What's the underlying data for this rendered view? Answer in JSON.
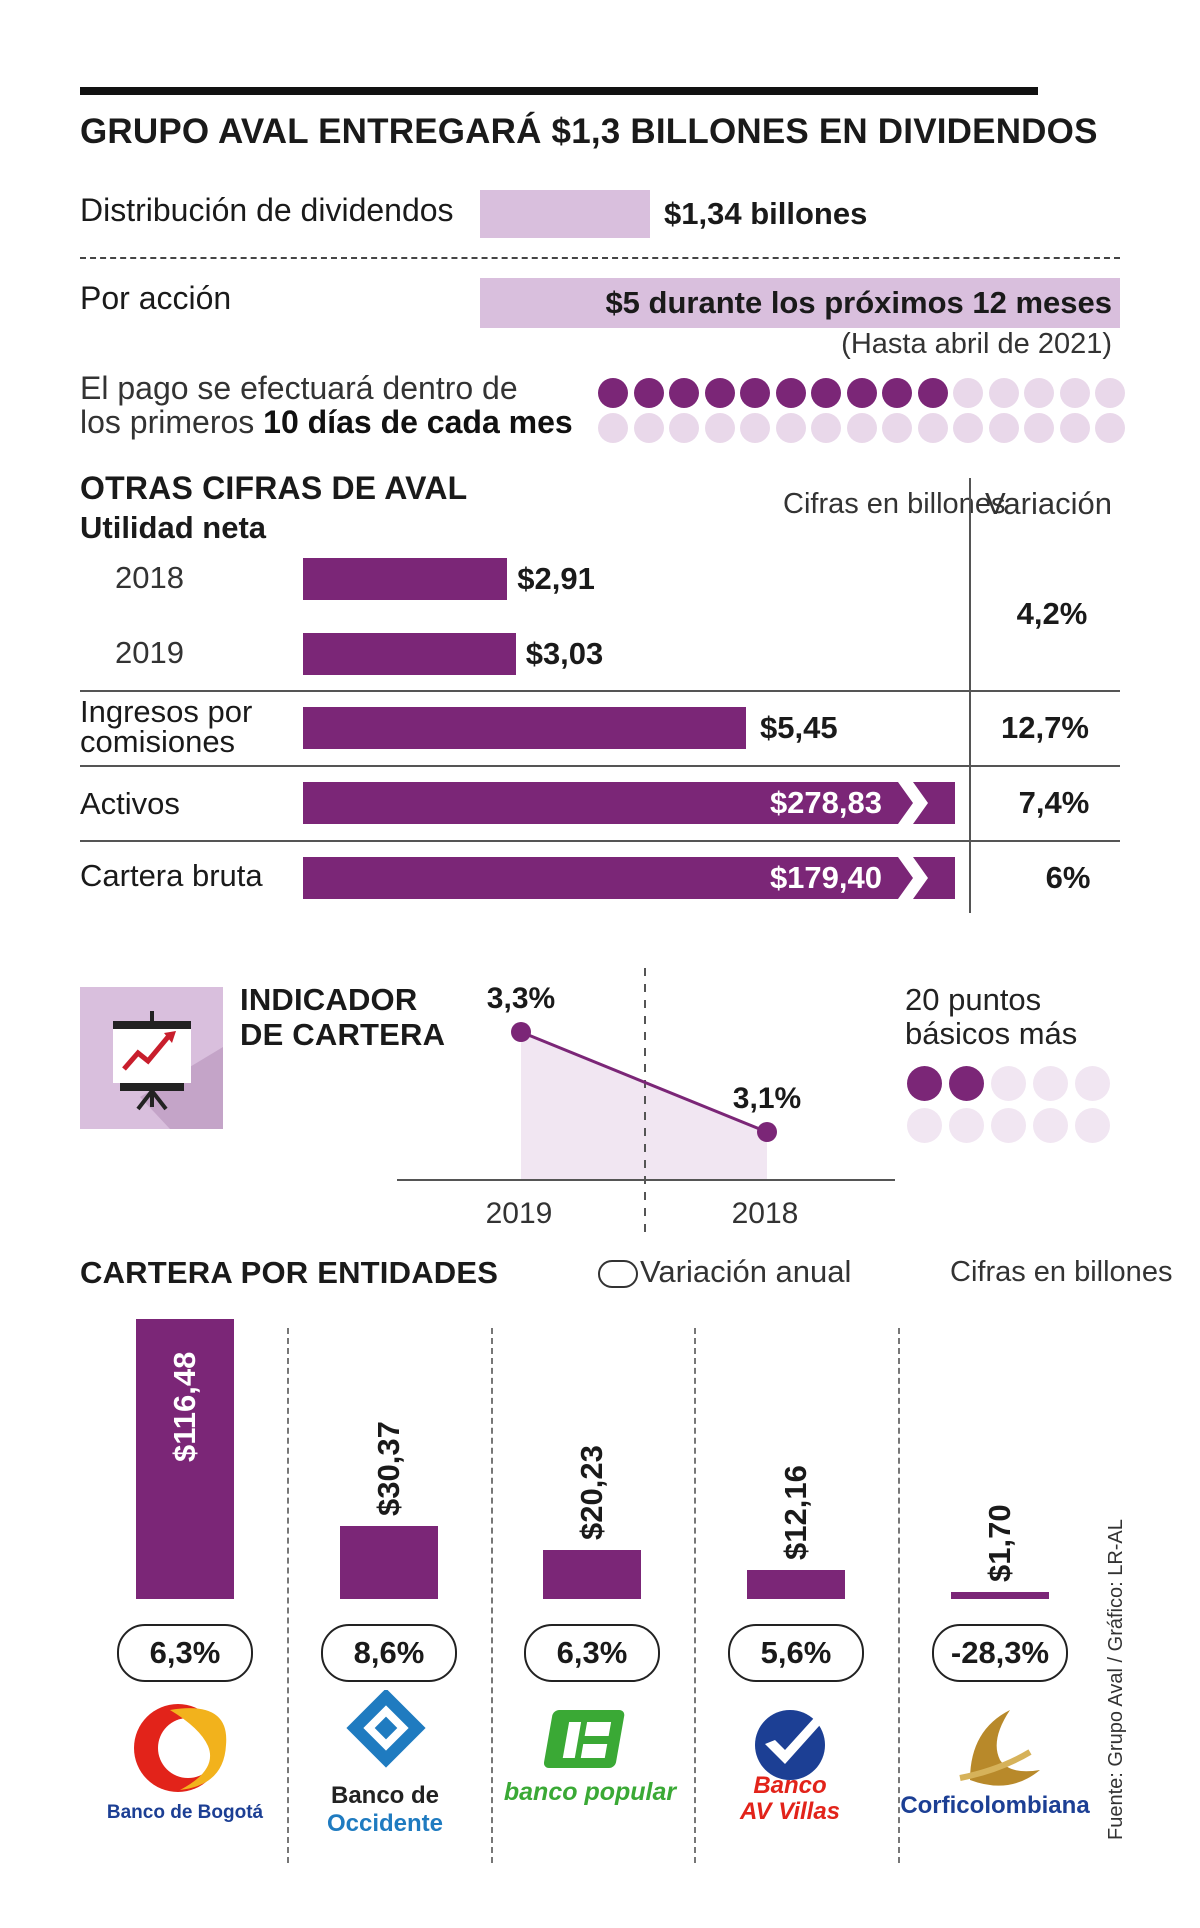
{
  "title": "GRUPO AVAL ENTREGARÁ $1,3 BILLONES EN DIVIDENDOS",
  "dividends": {
    "distribution_label": "Distribución de dividendos",
    "distribution_value": "$1,34 billones",
    "per_share_label": "Por acción",
    "per_share_value": "$5 durante los próximos 12 meses",
    "per_share_note": "(Hasta abril de 2021)",
    "payment_line1": "El pago se efectuará dentro de",
    "payment_line2_prefix": "los primeros ",
    "payment_line2_bold": "10 días de cada mes",
    "dots_total": 30,
    "dots_filled": 10
  },
  "otras": {
    "heading": "OTRAS CIFRAS DE AVAL",
    "subheading": "Utilidad neta",
    "units_note": "Cifras en billones",
    "variation_header": "Variación",
    "year_2018": "2018",
    "year_2019": "2019",
    "val_2018": "$2,91",
    "val_2019": "$3,03",
    "var_utilidad": "4,2%",
    "ingresos_line1": "Ingresos por",
    "ingresos_line2": "comisiones",
    "ingresos_value": "$5,45",
    "ingresos_var": "12,7%",
    "activos_label": "Activos",
    "activos_value": "$278,83",
    "activos_var": "7,4%",
    "cartera_label": "Cartera bruta",
    "cartera_value": "$179,40",
    "cartera_var": "6%"
  },
  "indicador": {
    "heading_line1": "INDICADOR",
    "heading_line2": "DE CARTERA",
    "points_line1": "20 puntos",
    "points_line2": "básicos más",
    "dots_total": 10,
    "dots_filled": 2
  },
  "entidades": {
    "heading": "CARTERA POR ENTIDADES",
    "variation_legend": "Variación anual",
    "units_note": "Cifras en billones",
    "source": "Fuente: Grupo Aval / Gráfico: LR-AL",
    "logos": {
      "bogota": "Banco de Bogotá",
      "occidente_line1": "Banco de",
      "occidente_line2": "Occidente",
      "popular": "banco popular",
      "avvillas_line1": "Banco",
      "avvillas_line2": "AV Villas",
      "corfi": "Corficolombiana"
    }
  },
  "colors": {
    "accent": "#7b2677",
    "light": "#d9bfdd",
    "lighter": "#e9d8ea"
  },
  "chart_data": [
    {
      "type": "bar",
      "title": "Utilidad neta",
      "categories": [
        "2018",
        "2019"
      ],
      "values": [
        2.91,
        3.03
      ],
      "labels": [
        "$2,91",
        "$3,03"
      ],
      "unit": "billones"
    },
    {
      "type": "line",
      "title": "INDICADOR DE CARTERA",
      "categories": [
        "2019",
        "2018"
      ],
      "values": [
        3.3,
        3.1
      ],
      "labels": [
        "3,3%",
        "3,1%"
      ]
    },
    {
      "type": "bar",
      "title": "CARTERA POR ENTIDADES",
      "categories": [
        "Banco de Bogotá",
        "Banco de Occidente",
        "Banco Popular",
        "Banco AV Villas",
        "Corficolombiana"
      ],
      "values": [
        116.48,
        30.37,
        20.23,
        12.16,
        1.7
      ],
      "labels": [
        "$116,48",
        "$30,37",
        "$20,23",
        "$12,16",
        "$1,70"
      ],
      "variation": [
        "6,3%",
        "8,6%",
        "6,3%",
        "5,6%",
        "-28,3%"
      ],
      "ylim": [
        0,
        116.48
      ],
      "unit": "billones"
    }
  ]
}
